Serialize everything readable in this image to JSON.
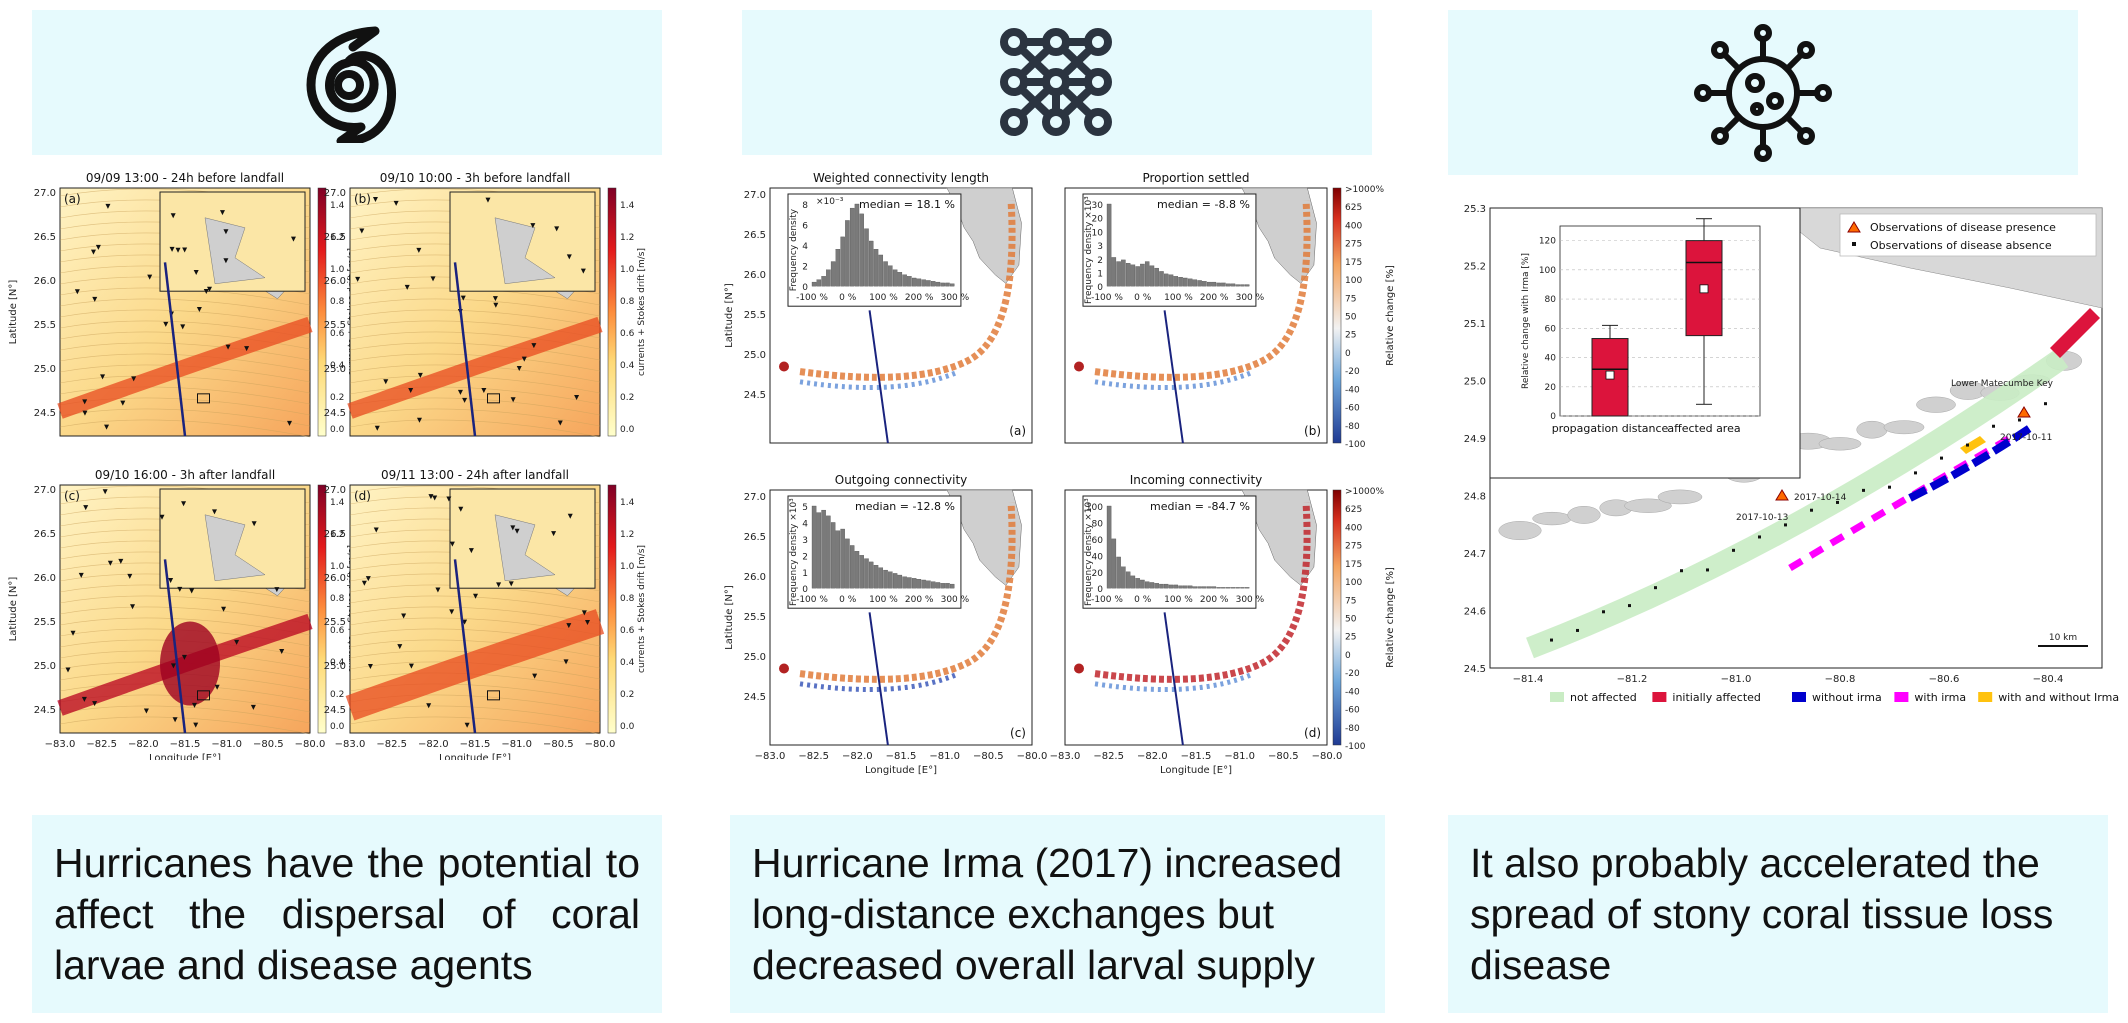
{
  "columns": [
    {
      "icon": "hurricane-icon",
      "caption": "Hurricanes have the potential to affect the dispersal of coral larvae and disease agents",
      "maps": [
        {
          "id": "a",
          "title": "09/09 13:00 - 24h before landfall"
        },
        {
          "id": "b",
          "title": "09/10 10:00 - 3h before landfall"
        },
        {
          "id": "c",
          "title": "09/10 16:00 - 3h after landfall"
        },
        {
          "id": "d",
          "title": "09/11 13:00 - 24h after landfall"
        }
      ],
      "colorbar_label": "currents + Stokes drift [m/s]",
      "colorbar_ticks": [
        "1.4",
        "1.2",
        "1.0",
        "0.8",
        "0.6",
        "0.4",
        "0.2",
        "0.0"
      ],
      "lat_label": "Latitude [N°]",
      "lon_label": "Longitude [E°]",
      "lat_ticks": [
        "27.0",
        "26.5",
        "26.0",
        "25.5",
        "25.0",
        "24.5"
      ],
      "lon_ticks": [
        "−83.0",
        "−82.5",
        "−82.0",
        "−81.5",
        "−81.0",
        "−80.5",
        "−80.0"
      ]
    },
    {
      "icon": "network-icon",
      "caption": "Hurricane Irma (2017) increased long-distance exchanges but decreased overall larval supply",
      "panels": [
        {
          "id": "a",
          "title": "Weighted connectivity length",
          "median": "median = 18.1 %",
          "ylabel": "Frequency density",
          "exp": "×10⁻³",
          "yticks": [
            "8",
            "6",
            "4",
            "2",
            "0"
          ]
        },
        {
          "id": "b",
          "title": "Proportion settled",
          "median": "median = -8.8 %",
          "ylabel": "Frequency density ×10³",
          "exp": "",
          "yticks": [
            "30",
            "20",
            "10",
            "3",
            "2",
            "1",
            "0"
          ]
        },
        {
          "id": "c",
          "title": "Outgoing connectivity",
          "median": "median = -12.8 %",
          "ylabel": "Frequency density ×10³",
          "exp": "",
          "yticks": [
            "5",
            "4",
            "3",
            "2",
            "1",
            "0"
          ]
        },
        {
          "id": "d",
          "title": "Incoming connectivity",
          "median": "median = -84.7 %",
          "ylabel": "Frequency density ×10³",
          "exp": "",
          "yticks": [
            "100",
            "80",
            "60",
            "40",
            "20",
            "0"
          ]
        }
      ],
      "hist_xticks": [
        "-100 %",
        "0 %",
        "100 %",
        "200 %",
        "300 %"
      ],
      "colorbar_label": "Relative change [%]",
      "colorbar_ticks": [
        ">1000%",
        "625",
        "400",
        "275",
        "175",
        "100",
        "75",
        "50",
        "25",
        "0",
        "-20",
        "-40",
        "-60",
        "-80",
        "-100"
      ],
      "lat_label": "Latitude [N°]",
      "lon_label": "Longitude [E°]",
      "lat_ticks": [
        "27.0",
        "26.5",
        "26.0",
        "25.5",
        "25.0",
        "24.5"
      ],
      "lon_ticks": [
        "−83.0",
        "−82.5",
        "−82.0",
        "−81.5",
        "−81.0",
        "−80.5",
        "−80.0"
      ]
    },
    {
      "icon": "virus-icon",
      "caption": "It also probably accelerated the spread of stony coral tissue loss disease",
      "map": {
        "lat_ticks": [
          "25.3",
          "25.2",
          "25.1",
          "25.0",
          "24.9",
          "24.8",
          "24.7",
          "24.6",
          "24.5"
        ],
        "lon_ticks": [
          "−81.4",
          "−81.2",
          "−81.0",
          "−80.8",
          "−80.6",
          "−80.4"
        ],
        "legend_presence": "Observations of disease presence",
        "legend_absence": "Observations of disease absence",
        "place_label": "Lower Matecumbe Key",
        "dates": [
          "2017-10-11",
          "2017-10-14",
          "2017-10-13"
        ],
        "scale": "10 km",
        "categories": [
          {
            "label": "not affected",
            "color": "#c9ecc4"
          },
          {
            "label": "initially affected",
            "color": "#dc143c"
          },
          {
            "label": "without irma",
            "color": "#0000cd"
          },
          {
            "label": "with irma",
            "color": "#ff00ff"
          },
          {
            "label": "with and without Irma",
            "color": "#ffc20e"
          }
        ]
      },
      "chart_data": {
        "type": "box",
        "categories": [
          "propagation distance",
          "affected area"
        ],
        "ylabel": "Relative change with Irma [%]",
        "ylim": [
          0,
          130
        ],
        "yticks": [
          "0",
          "20",
          "40",
          "60",
          "80",
          "100",
          "120"
        ],
        "boxes": [
          {
            "min": 0,
            "q1": 0,
            "median": 32,
            "q3": 53,
            "max": 62,
            "mean": 28
          },
          {
            "min": 8,
            "q1": 55,
            "median": 105,
            "q3": 120,
            "max": 135,
            "mean": 87
          }
        ]
      }
    }
  ]
}
